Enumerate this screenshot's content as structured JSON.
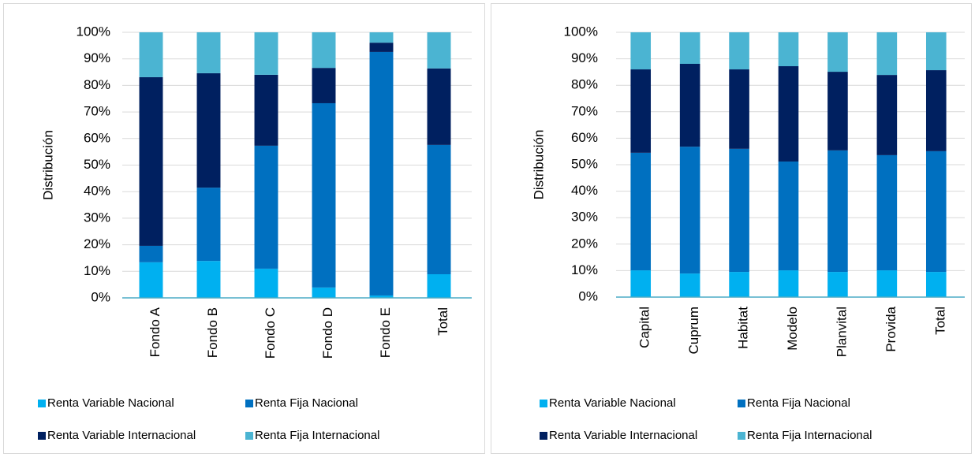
{
  "chart_data": [
    {
      "type": "bar",
      "stacked": true,
      "y_label": "Distribución",
      "categories": [
        "Fondo A",
        "Fondo B",
        "Fondo C",
        "Fondo D",
        "Fondo E",
        "Total"
      ],
      "series": [
        {
          "name": "Renta Variable Nacional",
          "color": "#00b0f0",
          "values": [
            13.4,
            13.9,
            11,
            3.9,
            0.9,
            8.9
          ]
        },
        {
          "name": "Renta Fija Nacional",
          "color": "#0070c0",
          "values": [
            6.2,
            27.6,
            46.3,
            69.4,
            91.7,
            48.7
          ]
        },
        {
          "name": "Renta Variable Internacional",
          "color": "#002060",
          "values": [
            63.5,
            43.1,
            26.7,
            13.3,
            3.5,
            28.8
          ]
        },
        {
          "name": "Renta Fija Internacional",
          "color": "#4bb4d2",
          "values": [
            16.9,
            15.4,
            16,
            13.4,
            3.9,
            13.6
          ]
        }
      ],
      "ylim": [
        0,
        100
      ],
      "yticks": [
        {
          "value": 0,
          "label": "0%"
        },
        {
          "value": 10,
          "label": "10%"
        },
        {
          "value": 20,
          "label": "20%"
        },
        {
          "value": 30,
          "label": "30%"
        },
        {
          "value": 40,
          "label": "40%"
        },
        {
          "value": 50,
          "label": "50%"
        },
        {
          "value": 60,
          "label": "60%"
        },
        {
          "value": 70,
          "label": "70%"
        },
        {
          "value": 80,
          "label": "80%"
        },
        {
          "value": 90,
          "label": "90%"
        },
        {
          "value": 100,
          "label": "100%"
        }
      ],
      "grid": true
    },
    {
      "type": "bar",
      "stacked": true,
      "y_label": "Distribución",
      "categories": [
        "Capital",
        "Cuprum",
        "Habitat",
        "Modelo",
        "Planvital",
        "Provida",
        "Total"
      ],
      "series": [
        {
          "name": "Renta Variable Nacional",
          "color": "#00b0f0",
          "values": [
            10.1,
            8.9,
            9.5,
            10.1,
            9.5,
            10.1,
            9.5
          ]
        },
        {
          "name": "Renta Fija Nacional",
          "color": "#0070c0",
          "values": [
            44.4,
            47.9,
            46.5,
            41.1,
            45.9,
            43.5,
            45.6
          ]
        },
        {
          "name": "Renta Variable Internacional",
          "color": "#002060",
          "values": [
            31.5,
            31.3,
            30,
            36,
            29.7,
            30.3,
            30.6
          ]
        },
        {
          "name": "Renta Fija Internacional",
          "color": "#4bb4d2",
          "values": [
            14,
            11.9,
            14,
            12.8,
            14.9,
            16.1,
            14.3
          ]
        }
      ],
      "ylim": [
        0,
        100
      ],
      "yticks": [
        {
          "value": 0,
          "label": "0%"
        },
        {
          "value": 10,
          "label": "10%"
        },
        {
          "value": 20,
          "label": "20%"
        },
        {
          "value": 30,
          "label": "30%"
        },
        {
          "value": 40,
          "label": "40%"
        },
        {
          "value": 50,
          "label": "50%"
        },
        {
          "value": 60,
          "label": "60%"
        },
        {
          "value": 70,
          "label": "70%"
        },
        {
          "value": 80,
          "label": "80%"
        },
        {
          "value": 90,
          "label": "90%"
        },
        {
          "value": 100,
          "label": "100%"
        }
      ],
      "grid": true
    }
  ]
}
